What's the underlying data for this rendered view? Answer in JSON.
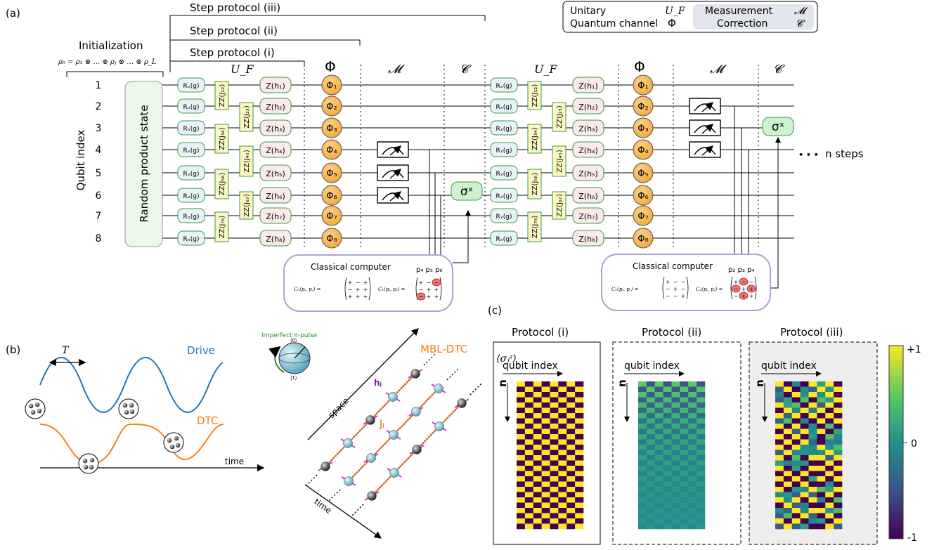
{
  "panels": {
    "a": "(a)",
    "b": "(b)",
    "c": "(c)"
  },
  "legend": {
    "unitary": "Unitary",
    "unitary_sym": "U_F",
    "channel": "Quantum channel",
    "channel_sym": "Φ",
    "measurement": "Measurement",
    "measurement_sym": "𝓜",
    "correction": "Correction",
    "correction_sym": "𝓒"
  },
  "circuit": {
    "protocols": [
      "Step protocol (i)",
      "Step protocol (ii)",
      "Step protocol (iii)"
    ],
    "initialization": "Initialization",
    "rho": "ρ₀ = ρ₁ ⊗ … ⊗ ρⱼ ⊗ … ⊗ ρ_L",
    "qubit_axis": "Qubit index",
    "qubits": [
      "1",
      "2",
      "3",
      "4",
      "5",
      "6",
      "7",
      "8"
    ],
    "random_state": "Random product state",
    "uf": "U_F",
    "phi": "Φ",
    "m": "𝓜",
    "c": "𝓒",
    "rx": "Rₓ(g)",
    "zz": [
      "ZZ(J₁₂)",
      "ZZ(J₂₃)",
      "ZZ(J₃₄)",
      "ZZ(J₄₅)",
      "ZZ(J₅₆)",
      "ZZ(J₆₇)",
      "ZZ(J₇₈)"
    ],
    "z": [
      "Z(h₁)",
      "Z(h₂)",
      "Z(h₃)",
      "Z(h₄)",
      "Z(h₅)",
      "Z(h₆)",
      "Z(h₇)",
      "Z(h₈)"
    ],
    "phis": [
      "Φ₁",
      "Φ₂",
      "Φ₃",
      "Φ₄",
      "Φ₅",
      "Φ₆",
      "Φ₇",
      "Φ₈"
    ],
    "sigma": "σˣ",
    "nsteps": "n steps",
    "dots": "• • •",
    "cc_title": "Classical computer",
    "cc1_p": "p₄ p₅ p₆",
    "cc2_p": "p₂ p₃ p₄",
    "c0": "C₀(pᵢ, pⱼ) =",
    "c1": "C₁(pᵢ, pⱼ) =",
    "c2": "C₂(pᵢ, pⱼ) ="
  },
  "panel_b": {
    "period": "T",
    "drive": "Drive",
    "dtc": "DTC",
    "time": "time",
    "pulse": "Imperfect π-pulse",
    "ket0": "|0⟩",
    "ket1": "|1⟩",
    "mbl": "MBL-DTC",
    "hj": "hⱼ",
    "jj": "Jⱼ",
    "space": "space",
    "time2": "time"
  },
  "panel_c": {
    "titles": [
      "Protocol (i)",
      "Protocol (ii)",
      "Protocol (iii)"
    ],
    "obs": "⟨σⱼᶻ⟩",
    "qubit_index": "qubit index",
    "n": "n",
    "colorbar": [
      "+1",
      "0",
      "-1"
    ]
  },
  "colors": {
    "yellow": "#fde725",
    "purple": "#440154",
    "teal": "#21918c",
    "orange": "#ff7f0e",
    "blue": "#1f77b4"
  }
}
